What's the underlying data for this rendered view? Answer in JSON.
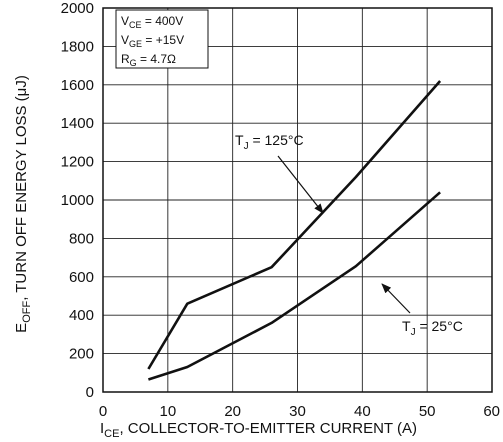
{
  "chart_data": {
    "type": "line",
    "title": "",
    "xlabel": {
      "prefix": "I",
      "sub": "CE",
      "text": ", COLLECTOR-TO-EMITTER CURRENT (A)"
    },
    "ylabel": {
      "prefix": "E",
      "sub": "OFF",
      "text": ",  TURN OFF ENERGY LOSS (μJ)"
    },
    "xlim": [
      0,
      60
    ],
    "ylim": [
      0,
      2000
    ],
    "xticks": [
      "0",
      "10",
      "20",
      "30",
      "40",
      "50",
      "60"
    ],
    "yticks": [
      "0",
      "200",
      "400",
      "600",
      "800",
      "1000",
      "1200",
      "1400",
      "1600",
      "1800",
      "2000"
    ],
    "grid": true,
    "series": [
      {
        "name": "125°C",
        "x": [
          7,
          13,
          26,
          39,
          52
        ],
        "y": [
          120,
          460,
          650,
          1120,
          1620
        ]
      },
      {
        "name": "25°C",
        "x": [
          7,
          13,
          26,
          39,
          52
        ],
        "y": [
          65,
          130,
          360,
          655,
          1040
        ]
      }
    ],
    "conditions": [
      {
        "prefix": "V",
        "sub": "CE",
        "text": " =  400V"
      },
      {
        "prefix": "V",
        "sub": "GE",
        "text": " =  +15V"
      },
      {
        "prefix": "R",
        "sub": "G",
        "text": " = 4.7Ω"
      }
    ],
    "annotations": [
      {
        "prefix": "T",
        "sub": "J",
        "text": " = 125°C"
      },
      {
        "prefix": "T",
        "sub": "J",
        "text": " = 25°C"
      }
    ]
  }
}
